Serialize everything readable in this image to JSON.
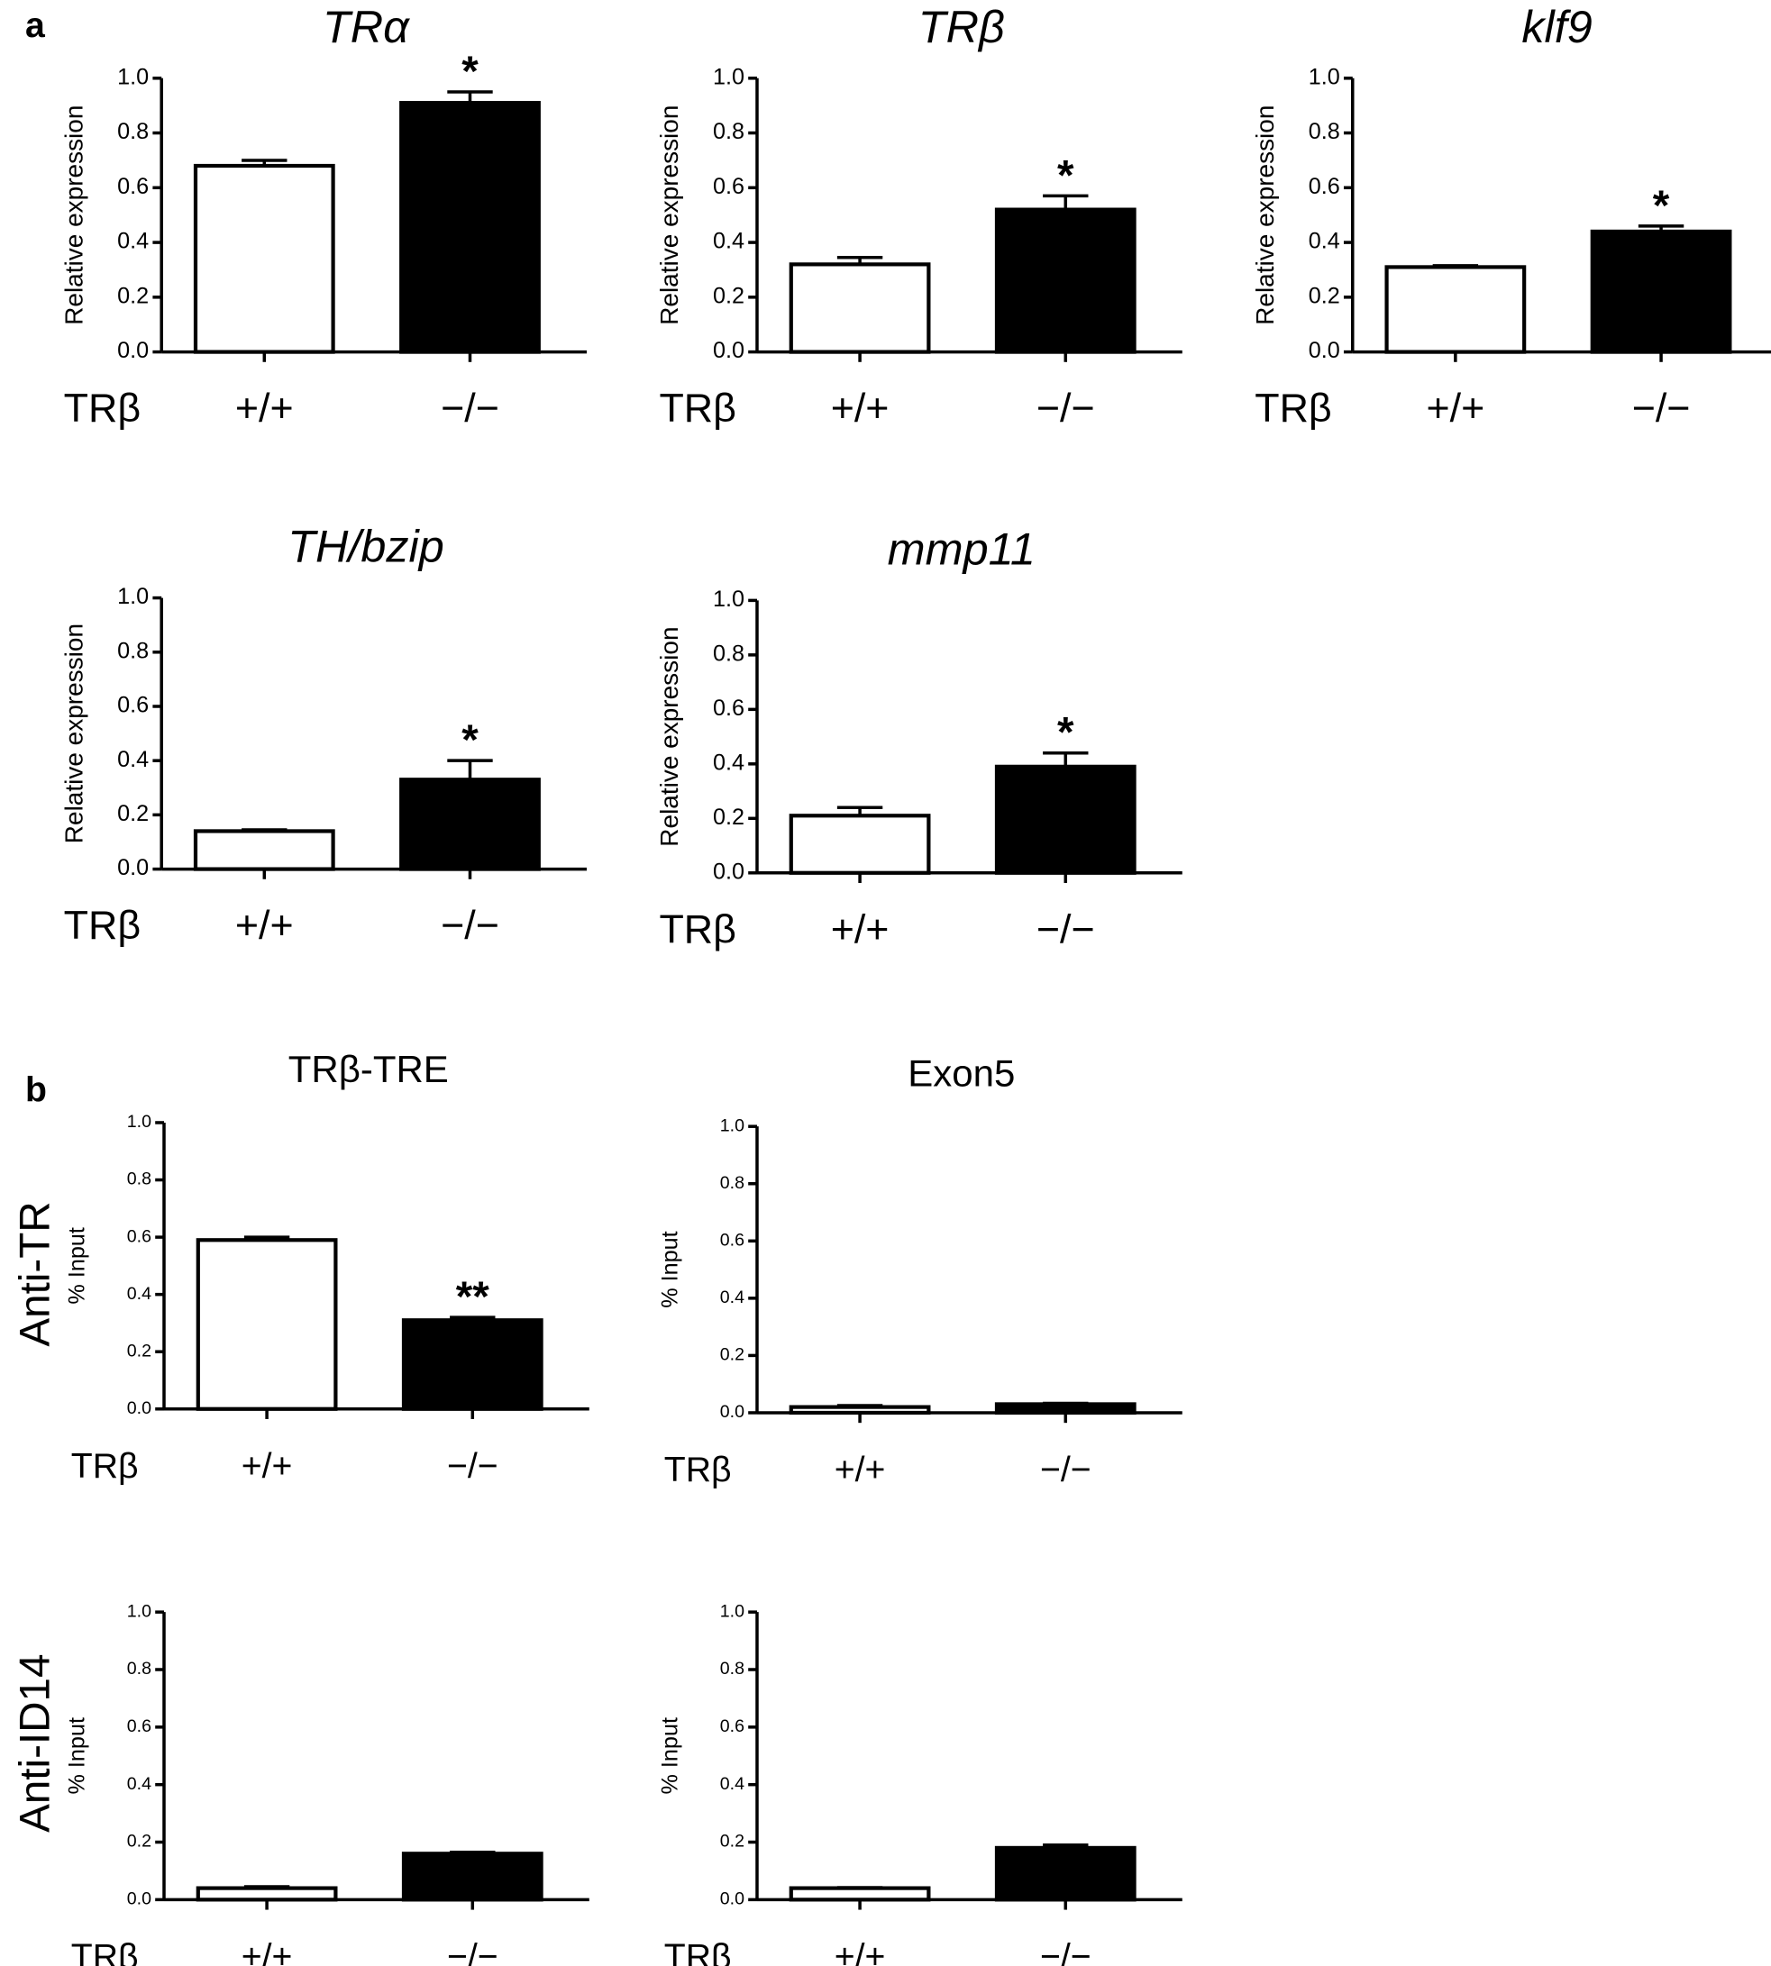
{
  "panel_labels": [
    "a",
    "b"
  ],
  "row_labels": [
    "Anti-TR",
    "Anti-ID14"
  ],
  "chart_data": [
    {
      "type": "bar",
      "title": "TRα",
      "title_italic": true,
      "y_label": "Relative expression",
      "x_label": "TRβ",
      "categories": [
        "+/+",
        "−/−"
      ],
      "values": [
        0.68,
        0.91
      ],
      "errors": [
        0.02,
        0.04
      ],
      "colors": [
        "#ffffff",
        "#000000"
      ],
      "significance": [
        null,
        "*"
      ],
      "ylim": [
        0,
        1
      ],
      "yticks": [
        {
          "value": 0,
          "label": "0.0"
        },
        0.2,
        0.4,
        0.6,
        0.8,
        {
          "value": 1,
          "label": "1.0"
        }
      ]
    },
    {
      "type": "bar",
      "title": "TRβ",
      "title_italic": true,
      "y_label": "Relative expression",
      "x_label": "TRβ",
      "categories": [
        "+/+",
        "−/−"
      ],
      "values": [
        0.32,
        0.52
      ],
      "errors": [
        0.025,
        0.05
      ],
      "colors": [
        "#ffffff",
        "#000000"
      ],
      "significance": [
        null,
        "*"
      ],
      "ylim": [
        0,
        1
      ],
      "yticks": [
        {
          "value": 0,
          "label": "0.0"
        },
        0.2,
        0.4,
        0.6,
        0.8,
        {
          "value": 1,
          "label": "1.0"
        }
      ]
    },
    {
      "type": "bar",
      "title": "klf9",
      "title_italic": true,
      "y_label": "Relative expression",
      "x_label": "TRβ",
      "categories": [
        "+/+",
        "−/−"
      ],
      "values": [
        0.31,
        0.44
      ],
      "errors": [
        0.005,
        0.02
      ],
      "colors": [
        "#ffffff",
        "#000000"
      ],
      "significance": [
        null,
        "*"
      ],
      "ylim": [
        0,
        1
      ],
      "yticks": [
        {
          "value": 0,
          "label": "0.0"
        },
        0.2,
        0.4,
        0.6,
        0.8,
        {
          "value": 1,
          "label": "1.0"
        }
      ]
    },
    {
      "type": "bar",
      "title": "TH/bzip",
      "title_italic": true,
      "y_label": "Relative expression",
      "x_label": "TRβ",
      "categories": [
        "+/+",
        "−/−"
      ],
      "values": [
        0.14,
        0.33
      ],
      "errors": [
        0.005,
        0.07
      ],
      "colors": [
        "#ffffff",
        "#000000"
      ],
      "significance": [
        null,
        "*"
      ],
      "ylim": [
        0,
        1
      ],
      "yticks": [
        {
          "value": 0,
          "label": "0.0"
        },
        0.2,
        0.4,
        0.6,
        0.8,
        {
          "value": 1,
          "label": "1.0"
        }
      ]
    },
    {
      "type": "bar",
      "title": "mmp11",
      "title_italic": true,
      "y_label": "Relative expression",
      "x_label": "TRβ",
      "categories": [
        "+/+",
        "−/−"
      ],
      "values": [
        0.21,
        0.39
      ],
      "errors": [
        0.03,
        0.05
      ],
      "colors": [
        "#ffffff",
        "#000000"
      ],
      "significance": [
        null,
        "*"
      ],
      "ylim": [
        0,
        1
      ],
      "yticks": [
        {
          "value": 0,
          "label": "0.0"
        },
        0.2,
        0.4,
        0.6,
        0.8,
        {
          "value": 1,
          "label": "1.0"
        }
      ]
    },
    {
      "type": "bar",
      "title": "TRβ-TRE",
      "title_italic": false,
      "y_label": "% Input",
      "x_label": "TRβ",
      "categories": [
        "+/+",
        "−/−"
      ],
      "values": [
        0.59,
        0.31
      ],
      "errors": [
        0.01,
        0.01
      ],
      "colors": [
        "#ffffff",
        "#000000"
      ],
      "significance": [
        null,
        "**"
      ],
      "ylim": [
        0,
        1
      ],
      "yticks": [
        {
          "value": 0,
          "label": "0.0"
        },
        0.2,
        0.4,
        0.6,
        0.8,
        {
          "value": 1,
          "label": "1.0"
        }
      ]
    },
    {
      "type": "bar",
      "title": "Exon5",
      "title_italic": false,
      "y_label": "% Input",
      "x_label": "TRβ",
      "categories": [
        "+/+",
        "−/−"
      ],
      "values": [
        0.02,
        0.03
      ],
      "errors": [
        0.005,
        0.003
      ],
      "colors": [
        "#ffffff",
        "#000000"
      ],
      "ylim": [
        0,
        1
      ],
      "yticks": [
        {
          "value": 0,
          "label": "0.0"
        },
        0.2,
        0.4,
        0.6,
        0.8,
        {
          "value": 1,
          "label": "1.0"
        }
      ]
    },
    {
      "type": "bar",
      "y_label": "% Input",
      "x_label": "TRβ",
      "categories": [
        "+/+",
        "−/−"
      ],
      "values": [
        0.04,
        0.16
      ],
      "errors": [
        0.005,
        0.005
      ],
      "colors": [
        "#ffffff",
        "#000000"
      ],
      "ylim": [
        0,
        1
      ],
      "yticks": [
        {
          "value": 0,
          "label": "0.0"
        },
        0.2,
        0.4,
        0.6,
        0.8,
        {
          "value": 1,
          "label": "1.0"
        }
      ]
    },
    {
      "type": "bar",
      "y_label": "% Input",
      "x_label": "TRβ",
      "categories": [
        "+/+",
        "−/−"
      ],
      "values": [
        0.04,
        0.18
      ],
      "errors": [
        0.002,
        0.01
      ],
      "colors": [
        "#ffffff",
        "#000000"
      ],
      "ylim": [
        0,
        1
      ],
      "yticks": [
        {
          "value": 0,
          "label": "0.0"
        },
        0.2,
        0.4,
        0.6,
        0.8,
        {
          "value": 1,
          "label": "1.0"
        }
      ]
    }
  ]
}
